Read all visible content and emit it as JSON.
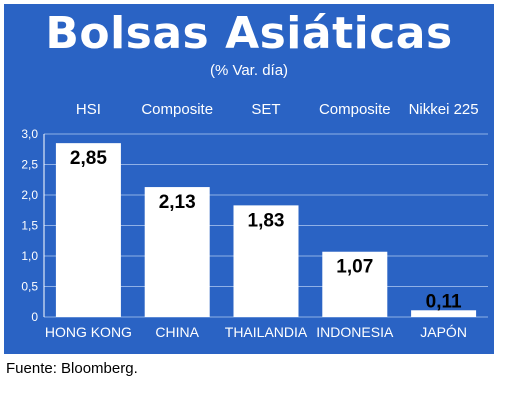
{
  "title": "Bolsas Asiáticas",
  "subtitle": "(% Var. día)",
  "source": "Fuente: Bloomberg.",
  "colors": {
    "background": "#2a63c4",
    "bar": "#ffffff",
    "grid": "#8fb0e6",
    "text": "#ffffff",
    "label_text": "#000000"
  },
  "chart_data": {
    "type": "bar",
    "categories": [
      "HONG KONG",
      "CHINA",
      "THAILANDIA",
      "INDONESIA",
      "JAPÓN"
    ],
    "indices": [
      "HSI",
      "Composite",
      "SET",
      "Composite",
      "Nikkei 225"
    ],
    "values": [
      2.85,
      2.13,
      1.83,
      1.07,
      0.11
    ],
    "value_labels": [
      "2,85",
      "2,13",
      "1,83",
      "1,07",
      "0,11"
    ],
    "ylim": [
      0,
      3
    ],
    "yticks": [
      0,
      0.5,
      1.0,
      1.5,
      2.0,
      2.5,
      3.0
    ],
    "ytick_labels": [
      "0",
      "0,5",
      "1,0",
      "1,5",
      "2,0",
      "2,5",
      "3,0"
    ],
    "grid": true,
    "xlabel": "",
    "ylabel": ""
  }
}
